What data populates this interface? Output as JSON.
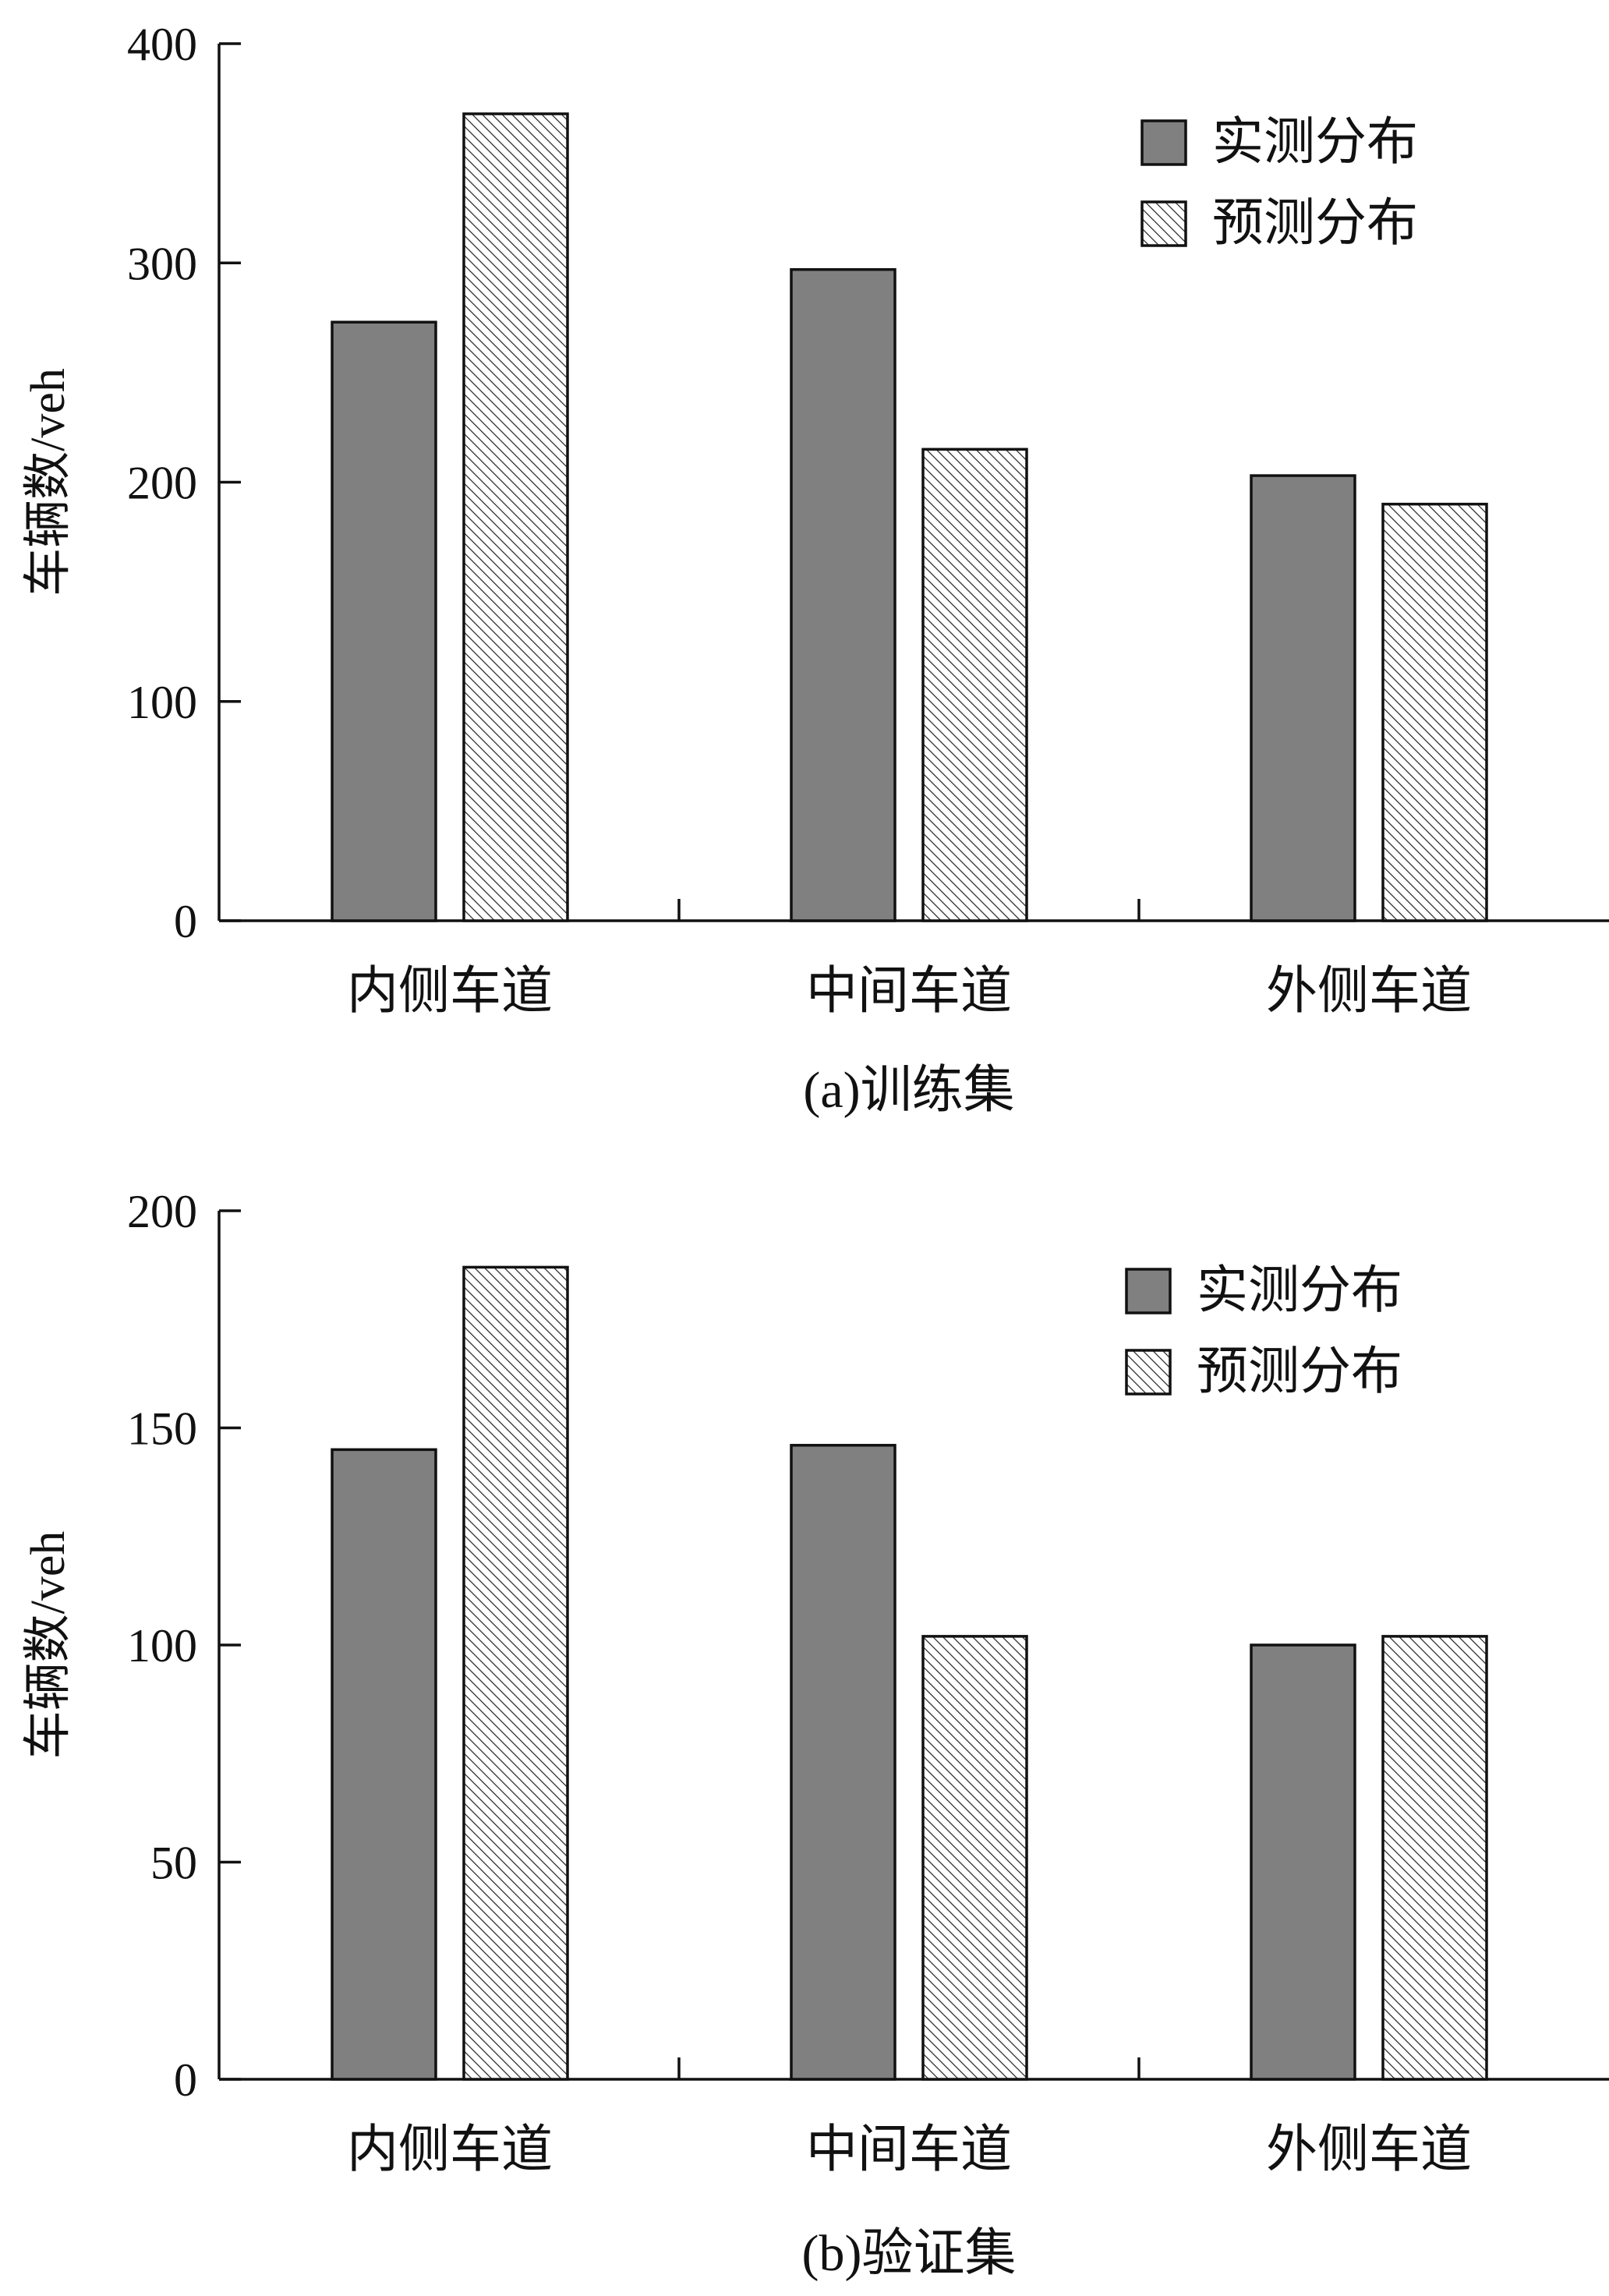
{
  "chart_data": [
    {
      "type": "bar",
      "caption": "(a)训练集",
      "categories": [
        "内侧车道",
        "中间车道",
        "外侧车道"
      ],
      "series": [
        {
          "name": "实测分布",
          "values": [
            273,
            297,
            203
          ],
          "fill": "#808080",
          "pattern": "solid"
        },
        {
          "name": "预测分布",
          "values": [
            368,
            215,
            190
          ],
          "fill": "#ffffff",
          "pattern": "hatch"
        }
      ],
      "ylabel": "车辆数/veh",
      "ylim": [
        0,
        400
      ],
      "yticks": [
        0,
        100,
        200,
        300,
        400
      ],
      "legend_position": "top-right",
      "grid": false
    },
    {
      "type": "bar",
      "caption": "(b)验证集",
      "categories": [
        "内侧车道",
        "中间车道",
        "外侧车道"
      ],
      "series": [
        {
          "name": "实测分布",
          "values": [
            145,
            146,
            100
          ],
          "fill": "#808080",
          "pattern": "solid"
        },
        {
          "name": "预测分布",
          "values": [
            187,
            102,
            102
          ],
          "fill": "#ffffff",
          "pattern": "hatch"
        }
      ],
      "ylabel": "车辆数/veh",
      "ylim": [
        0,
        200
      ],
      "yticks": [
        0,
        50,
        100,
        150,
        200
      ],
      "legend_position": "top-right",
      "grid": false
    }
  ]
}
